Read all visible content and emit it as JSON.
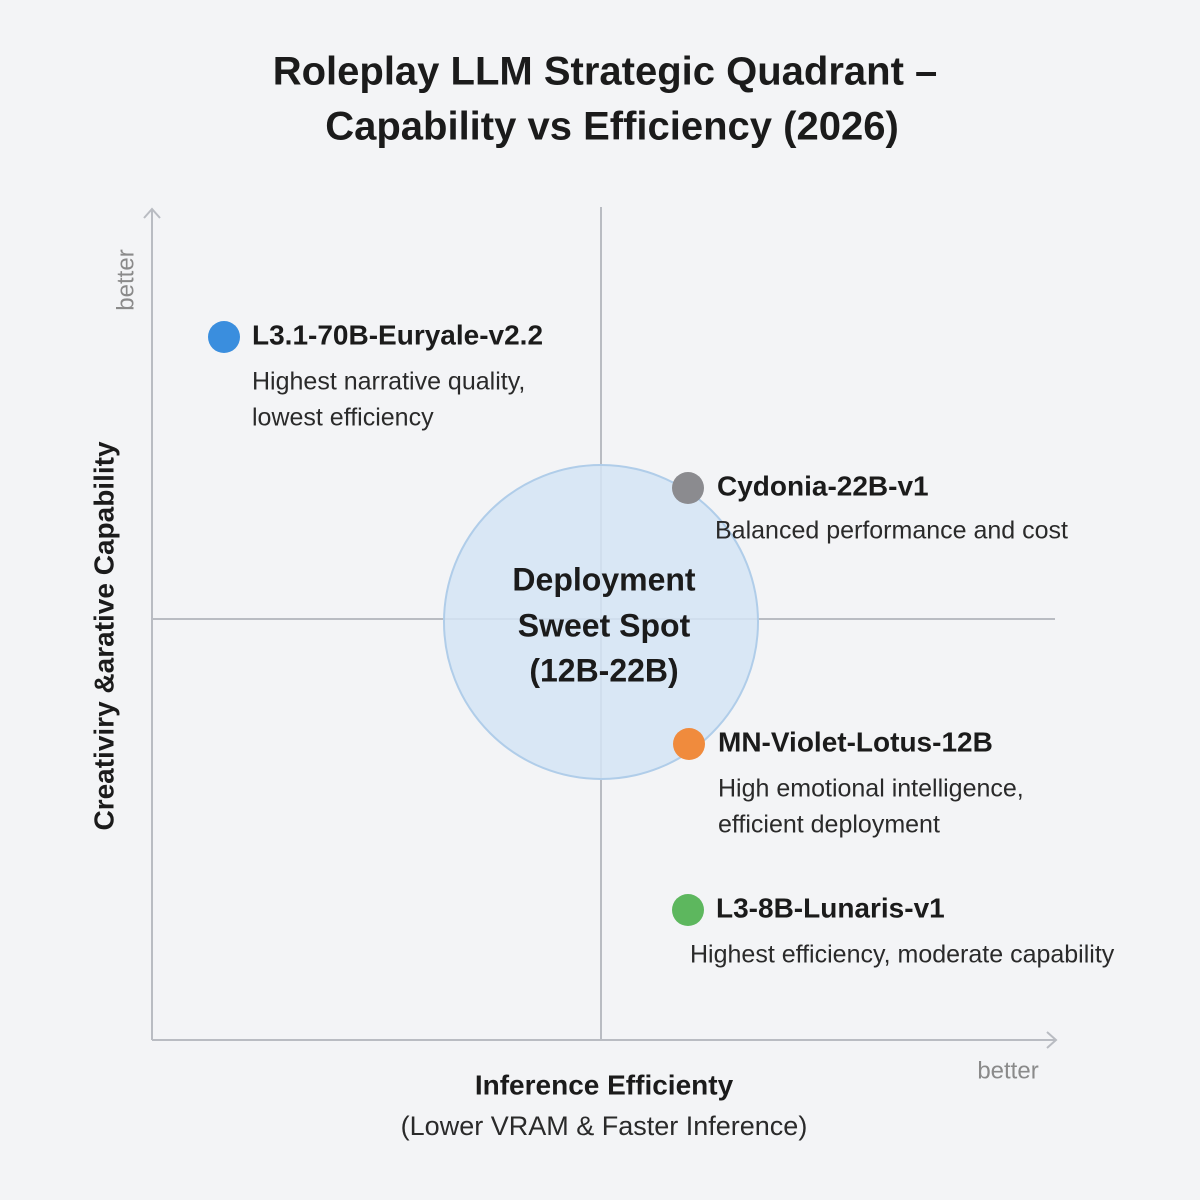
{
  "title_lines": [
    "Roleplay LLM Strategic Quadrant –",
    "Capability vs Efficiency (2026)"
  ],
  "y_axis": {
    "label": "Creativiry &arative Capability",
    "end_label": "better"
  },
  "x_axis": {
    "label": "Inference Efficienty",
    "sublabel": "(Lower VRAM & Faster Inference)",
    "end_label": "better"
  },
  "center_lines": [
    "Deployment",
    "Sweet Spot",
    "(12B-22B)"
  ],
  "nodes": [
    {
      "name": "L3.1-70B-Euryale-v2.2",
      "description": [
        "Highest narrative quality,",
        "lowest efficiency"
      ]
    },
    {
      "name": "Cydonia-22B-v1",
      "description": [
        "Balanced performance and cost"
      ]
    },
    {
      "name": "MN-Violet-Lotus-12B",
      "description": [
        "High emotional intelligence,",
        "efficient deployment"
      ]
    },
    {
      "name": "L3-8B-Lunaris-v1",
      "description": [
        "Highest efficiency, moderate capability"
      ]
    }
  ]
}
